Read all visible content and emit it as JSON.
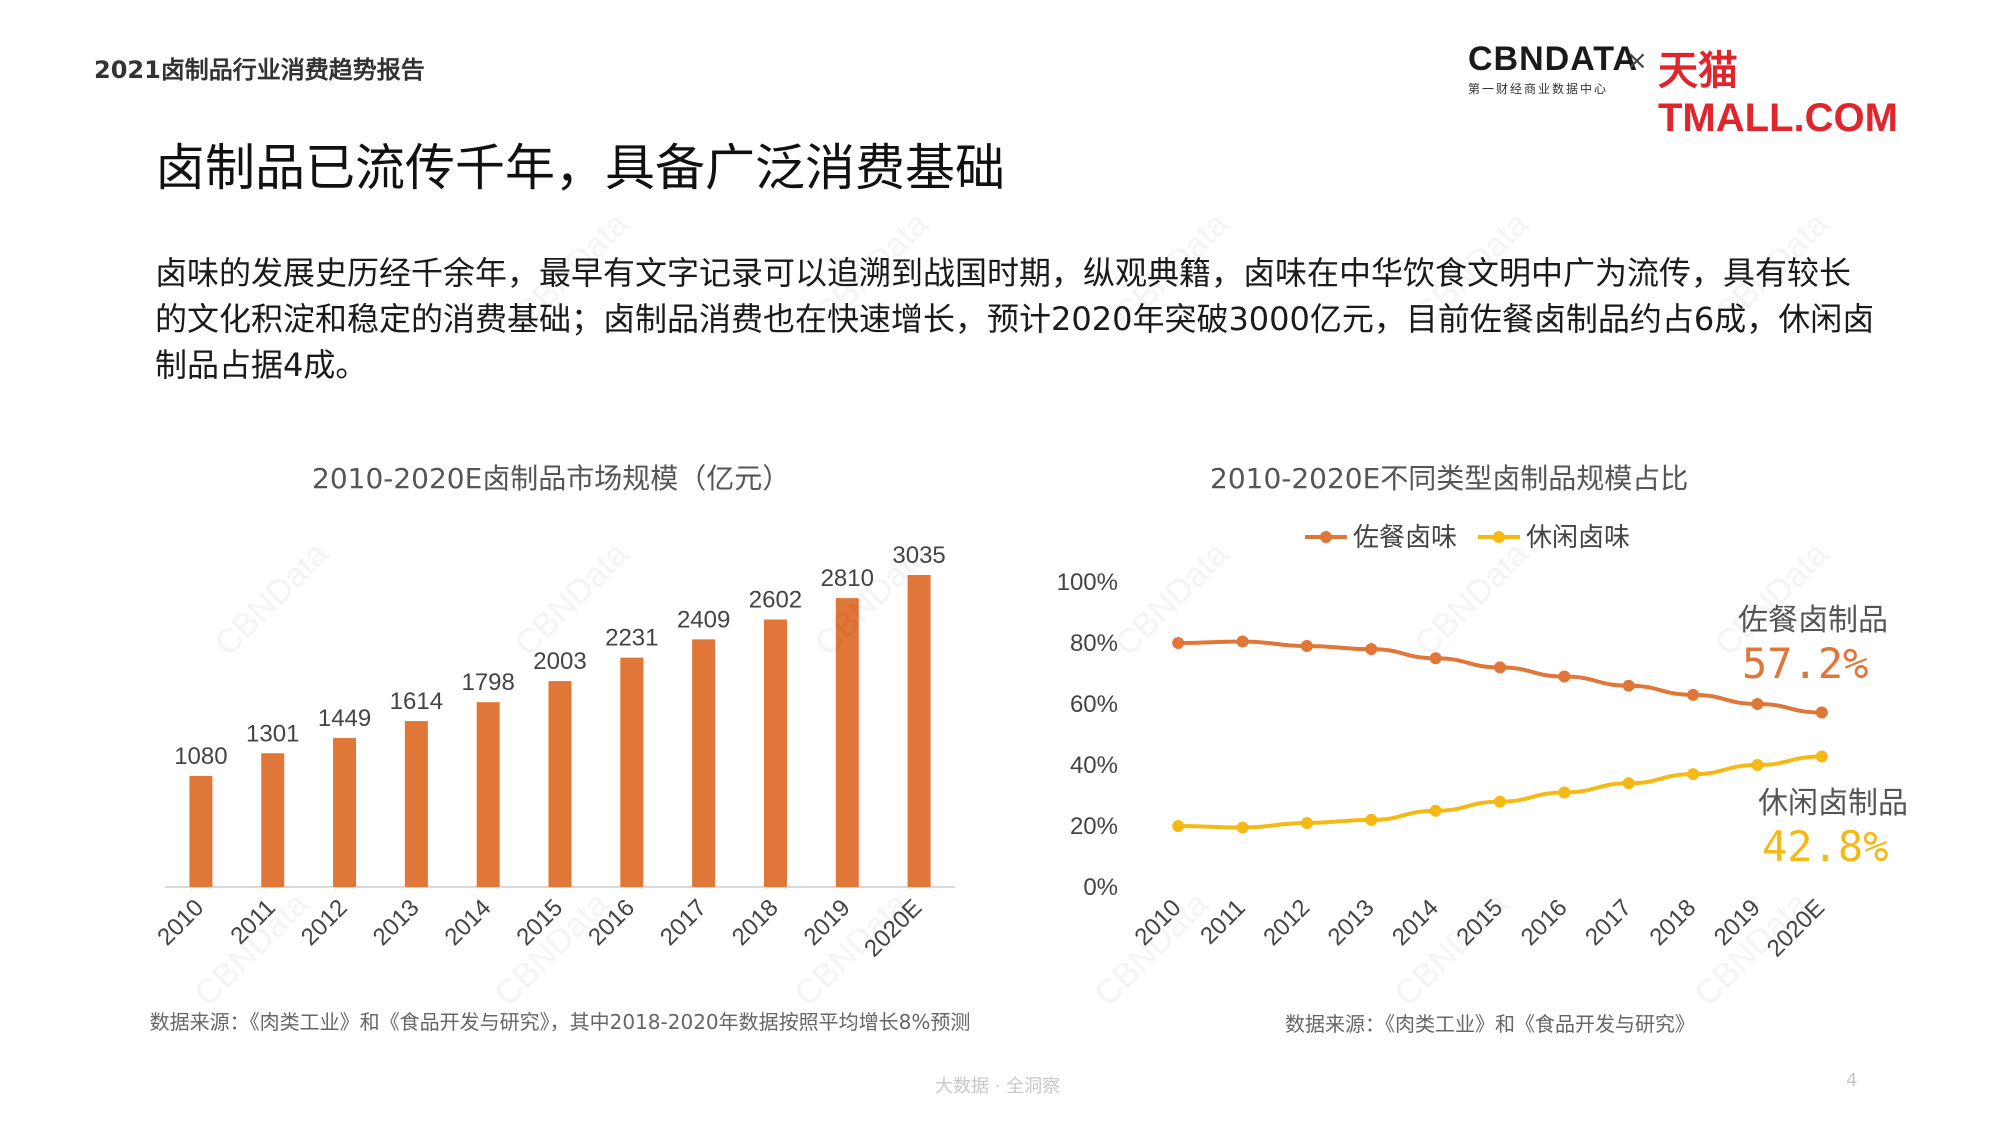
{
  "header": {
    "report_title": "2021卤制品行业消费趋势报告",
    "logo_cbn": "CBNDATA",
    "logo_cbn_sub": "第一财经商业数据中心",
    "logo_times": "×",
    "logo_tmall": "天猫TMALL.COM"
  },
  "main_title": "卤制品已流传千年，具备广泛消费基础",
  "body_text": "卤味的发展史历经千余年，最早有文字记录可以追溯到战国时期，纵观典籍，卤味在中华饮食文明中广为流传，具有较长的文化积淀和稳定的消费基础；卤制品消费也在快速增长，预计2020年突破3000亿元，目前佐餐卤制品约占6成，休闲卤制品占据4成。",
  "bar_chart": {
    "title": "2010-2020E卤制品市场规模（亿元）",
    "source": "数据来源：《肉类工业》和《食品开发与研究》，其中2018-2020年数据按照平均增长8%预测"
  },
  "line_chart": {
    "title": "2010-2020E不同类型卤制品规模占比",
    "source": "数据来源：《肉类工业》和《食品开发与研究》",
    "label_1": "佐餐卤制品",
    "value_1": "57.2%",
    "label_2": "休闲卤制品",
    "value_2": "42.8%"
  },
  "footer": {
    "tagline": "大数据 · 全洞察",
    "page": "4"
  },
  "watermark_text": "CBNData",
  "colors": {
    "bar": "#e07637",
    "series1": "#e07637",
    "series2": "#f5b915",
    "axis": "#d9d9d9"
  },
  "chart_data": [
    {
      "type": "bar",
      "title": "2010-2020E卤制品市场规模（亿元）",
      "categories": [
        "2010",
        "2011",
        "2012",
        "2013",
        "2014",
        "2015",
        "2016",
        "2017",
        "2018",
        "2019",
        "2020E"
      ],
      "values": [
        1080,
        1301,
        1449,
        1614,
        1798,
        2003,
        2231,
        2409,
        2602,
        2810,
        3035
      ],
      "ylim": [
        0,
        3100
      ],
      "grid": false,
      "data_labels": true
    },
    {
      "type": "line",
      "title": "2010-2020E不同类型卤制品规模占比",
      "categories": [
        "2010",
        "2011",
        "2012",
        "2013",
        "2014",
        "2015",
        "2016",
        "2017",
        "2018",
        "2019",
        "2020E"
      ],
      "series": [
        {
          "name": "佐餐卤味",
          "values": [
            80,
            80.5,
            79,
            78,
            75,
            72,
            69,
            66,
            63,
            60,
            57.2
          ]
        },
        {
          "name": "休闲卤味",
          "values": [
            20,
            19.5,
            21,
            22,
            25,
            28,
            31,
            34,
            37,
            40,
            42.8
          ]
        }
      ],
      "yticks": [
        "0%",
        "20%",
        "40%",
        "60%",
        "80%",
        "100%"
      ],
      "ylim": [
        0,
        100
      ],
      "legend": "top-center",
      "grid": false
    }
  ]
}
